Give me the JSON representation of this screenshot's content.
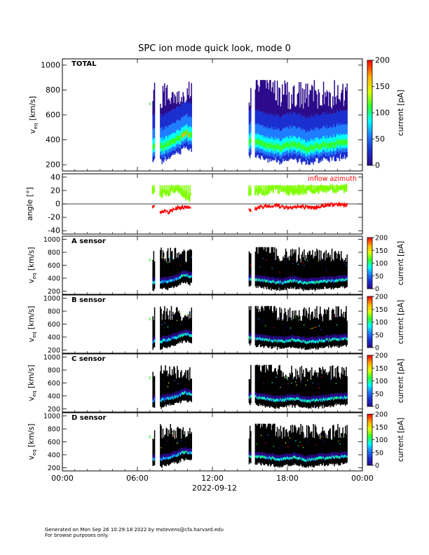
{
  "title": "SPC ion mode quick look, mode 0",
  "date_label": "2022-09-12",
  "footer": {
    "line1": "Generated on Mon Sep 26 10:29:18 2022 by mstevens@cfa.harvard.edu",
    "line2": "For browse purposes only."
  },
  "colors": {
    "spectrum": [
      "#2b0a8a",
      "#1a2fd0",
      "#1e7cff",
      "#00ffff",
      "#30ff30",
      "#dfff00",
      "#ffb000",
      "#ff0000"
    ],
    "inflow_azimuth": "#ff0000",
    "inflow_elevation": "#7fff00",
    "sensor_background": "#000000"
  },
  "chart_data": [
    {
      "type": "heatmap",
      "panel_label": "TOTAL",
      "ylabel_main": "v",
      "ylabel_sub": "eq",
      "ylabel_unit": "[km/s]",
      "ylim": [
        150,
        1050
      ],
      "yticks": [
        "200",
        "400",
        "600",
        "800",
        "1000"
      ],
      "colorbar_label": "current [pA]",
      "colorbar_range": [
        0,
        200
      ],
      "colorbar_ticks": [
        "0",
        "50",
        "100",
        "150",
        "200"
      ],
      "data_segments_hours": [
        [
          7.2,
          7.4
        ],
        [
          7.8,
          10.3
        ],
        [
          14.9,
          15.1
        ],
        [
          15.4,
          22.8
        ]
      ],
      "core_speed_kms": [
        [
          7.8,
          330
        ],
        [
          8.5,
          360
        ],
        [
          9.2,
          400
        ],
        [
          9.8,
          450
        ],
        [
          10.3,
          420
        ],
        [
          15.4,
          380
        ],
        [
          16.5,
          350
        ],
        [
          17.5,
          330
        ],
        [
          18.5,
          360
        ],
        [
          19.5,
          320
        ],
        [
          20.5,
          340
        ],
        [
          21.5,
          360
        ],
        [
          22.8,
          380
        ]
      ]
    },
    {
      "type": "line",
      "ylabel": "angle [°]",
      "ylim": [
        -45,
        45
      ],
      "yticks": [
        "-40",
        "-20",
        "0",
        "20",
        "40"
      ],
      "annotation": "inflow azimuth",
      "series": [
        {
          "name": "inflow azimuth",
          "color": "#ff0000",
          "x": [
            7.2,
            7.8,
            8.5,
            9.2,
            10.0,
            15.0,
            16.0,
            17.0,
            18.0,
            19.0,
            20.0,
            21.0,
            22.0,
            22.8
          ],
          "y": [
            -2,
            -10,
            -12,
            -6,
            -4,
            -10,
            -4,
            -2,
            -5,
            -4,
            -6,
            -2,
            -1,
            0
          ]
        },
        {
          "x": [
            7.2,
            7.8,
            8.5,
            9.2,
            10.0,
            15.0,
            16.0,
            17.0,
            18.0,
            19.0,
            20.0,
            21.0,
            22.0,
            22.8
          ],
          "y": [
            20,
            15,
            18,
            22,
            10,
            18,
            20,
            22,
            20,
            21,
            22,
            23,
            24,
            24
          ]
        }
      ]
    },
    {
      "type": "heatmap",
      "panel_label": "A sensor",
      "ylabel_main": "v",
      "ylabel_sub": "eq",
      "ylabel_unit": "[km/s]",
      "ylim": [
        150,
        1050
      ],
      "yticks": [
        "200",
        "400",
        "600",
        "800",
        "1000"
      ],
      "colorbar_label": "current [pA]",
      "colorbar_range": [
        0,
        200
      ],
      "colorbar_ticks": [
        "0",
        "50",
        "100",
        "150",
        "200"
      ]
    },
    {
      "type": "heatmap",
      "panel_label": "B sensor",
      "ylabel_main": "v",
      "ylabel_sub": "eq",
      "ylabel_unit": "[km/s]",
      "ylim": [
        150,
        1050
      ],
      "yticks": [
        "200",
        "400",
        "600",
        "800",
        "1000"
      ],
      "colorbar_label": "current [pA]",
      "colorbar_range": [
        0,
        200
      ],
      "colorbar_ticks": [
        "0",
        "50",
        "100",
        "150",
        "200"
      ]
    },
    {
      "type": "heatmap",
      "panel_label": "C sensor",
      "ylabel_main": "v",
      "ylabel_sub": "eq",
      "ylabel_unit": "[km/s]",
      "ylim": [
        150,
        1050
      ],
      "yticks": [
        "200",
        "400",
        "600",
        "800",
        "1000"
      ],
      "colorbar_label": "current [pA]",
      "colorbar_range": [
        0,
        200
      ],
      "colorbar_ticks": [
        "0",
        "50",
        "100",
        "150",
        "200"
      ]
    },
    {
      "type": "heatmap",
      "panel_label": "D sensor",
      "ylabel_main": "v",
      "ylabel_sub": "eq",
      "ylabel_unit": "[km/s]",
      "ylim": [
        150,
        1050
      ],
      "yticks": [
        "200",
        "400",
        "600",
        "800",
        "1000"
      ],
      "colorbar_label": "current [pA]",
      "colorbar_range": [
        0,
        200
      ],
      "colorbar_ticks": [
        "0",
        "50",
        "100",
        "150",
        "200"
      ]
    }
  ],
  "x_axis": {
    "range_hours": [
      0,
      24
    ],
    "ticks": [
      "00:00",
      "06:00",
      "12:00",
      "18:00",
      "00:00"
    ]
  }
}
